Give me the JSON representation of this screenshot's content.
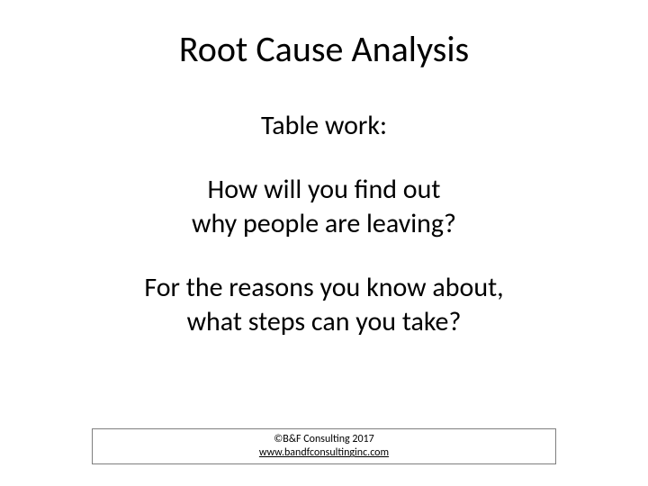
{
  "slide": {
    "title": "Root Cause Analysis",
    "subtitle": "Table work:",
    "question1_line1": "How will you find out",
    "question1_line2": "why people are leaving?",
    "question2_line1": "For the reasons you know about,",
    "question2_line2": "what steps can you take?",
    "footer": {
      "copyright": "©B&F Consulting 2017",
      "url": "www.bandfconsultinginc.com"
    }
  },
  "style": {
    "background_color": "#ffffff",
    "text_color": "#000000",
    "footer_border_color": "#7f7f7f",
    "title_fontsize": 40,
    "subtitle_fontsize": 30,
    "body_fontsize": 30,
    "footer_fontsize": 12,
    "font_family": "Calibri"
  }
}
